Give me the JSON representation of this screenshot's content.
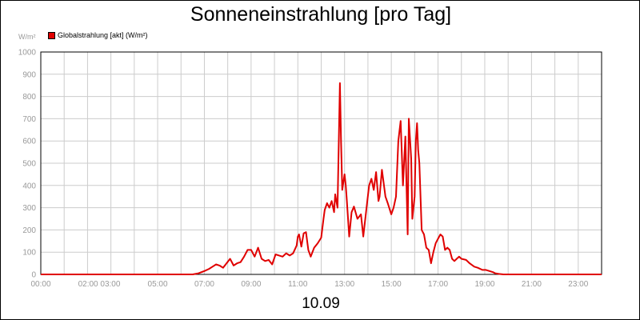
{
  "chart_data": {
    "type": "line",
    "title": "Sonneneinstrahlung [pro Tag]",
    "ylabel": "W/m²",
    "xlabel": "10.09",
    "ylim": [
      0,
      1000
    ],
    "xlim_hours": [
      0,
      24
    ],
    "y_ticks": [
      "0",
      "100",
      "200",
      "300",
      "400",
      "500",
      "600",
      "700",
      "800",
      "900",
      "1000"
    ],
    "x_tick_labels": [
      "00:00",
      "02:00 03:00",
      "05:00",
      "07:00",
      "09:00",
      "11:00",
      "13:00",
      "15:00",
      "17:00",
      "19:00",
      "21:00",
      "23:00"
    ],
    "x_tick_label_hours": [
      0,
      2.5,
      5,
      7,
      9,
      11,
      13,
      15,
      17,
      19,
      21,
      23
    ],
    "grid": true,
    "legend_position": "top-left",
    "series": [
      {
        "name": "Globalstrahlung [akt] (W/m²)",
        "color": "#e00000",
        "x": [
          0,
          6.5,
          6.75,
          7.0,
          7.2,
          7.35,
          7.5,
          7.65,
          7.8,
          7.95,
          8.1,
          8.25,
          8.4,
          8.55,
          8.7,
          8.85,
          9.0,
          9.15,
          9.3,
          9.45,
          9.6,
          9.75,
          9.9,
          10.05,
          10.2,
          10.35,
          10.5,
          10.65,
          10.8,
          10.95,
          11.0,
          11.05,
          11.15,
          11.25,
          11.35,
          11.45,
          11.55,
          11.7,
          11.85,
          12.0,
          12.1,
          12.15,
          12.25,
          12.35,
          12.45,
          12.55,
          12.6,
          12.7,
          12.8,
          12.85,
          12.9,
          13.0,
          13.05,
          13.1,
          13.2,
          13.3,
          13.4,
          13.55,
          13.7,
          13.8,
          13.95,
          14.05,
          14.15,
          14.25,
          14.35,
          14.45,
          14.5,
          14.6,
          14.75,
          14.85,
          15.0,
          15.1,
          15.2,
          15.3,
          15.4,
          15.5,
          15.6,
          15.7,
          15.75,
          15.85,
          15.9,
          16.0,
          16.05,
          16.1,
          16.15,
          16.2,
          16.3,
          16.4,
          16.5,
          16.6,
          16.7,
          16.8,
          16.9,
          17.0,
          17.1,
          17.2,
          17.3,
          17.4,
          17.5,
          17.6,
          17.7,
          17.8,
          17.9,
          18.0,
          18.2,
          18.35,
          18.55,
          18.7,
          18.9,
          19.05,
          19.2,
          19.35,
          19.45,
          19.6,
          19.8,
          20.0,
          21.0,
          22.0,
          23.0,
          24.0
        ],
        "values": [
          0,
          0,
          5,
          15,
          25,
          35,
          45,
          40,
          30,
          50,
          70,
          40,
          50,
          55,
          80,
          110,
          110,
          80,
          120,
          70,
          60,
          65,
          45,
          90,
          85,
          80,
          95,
          85,
          95,
          130,
          170,
          180,
          125,
          185,
          190,
          110,
          80,
          120,
          140,
          165,
          250,
          290,
          320,
          300,
          330,
          280,
          360,
          300,
          860,
          600,
          380,
          450,
          400,
          330,
          170,
          280,
          305,
          250,
          270,
          170,
          310,
          400,
          430,
          380,
          460,
          330,
          350,
          470,
          350,
          320,
          270,
          300,
          350,
          600,
          690,
          400,
          620,
          180,
          700,
          520,
          250,
          350,
          600,
          680,
          560,
          500,
          200,
          180,
          120,
          110,
          50,
          100,
          140,
          160,
          180,
          170,
          110,
          120,
          110,
          70,
          60,
          70,
          80,
          70,
          65,
          50,
          35,
          30,
          20,
          20,
          15,
          10,
          5,
          2,
          0,
          0,
          0,
          0,
          0,
          0
        ]
      }
    ]
  }
}
